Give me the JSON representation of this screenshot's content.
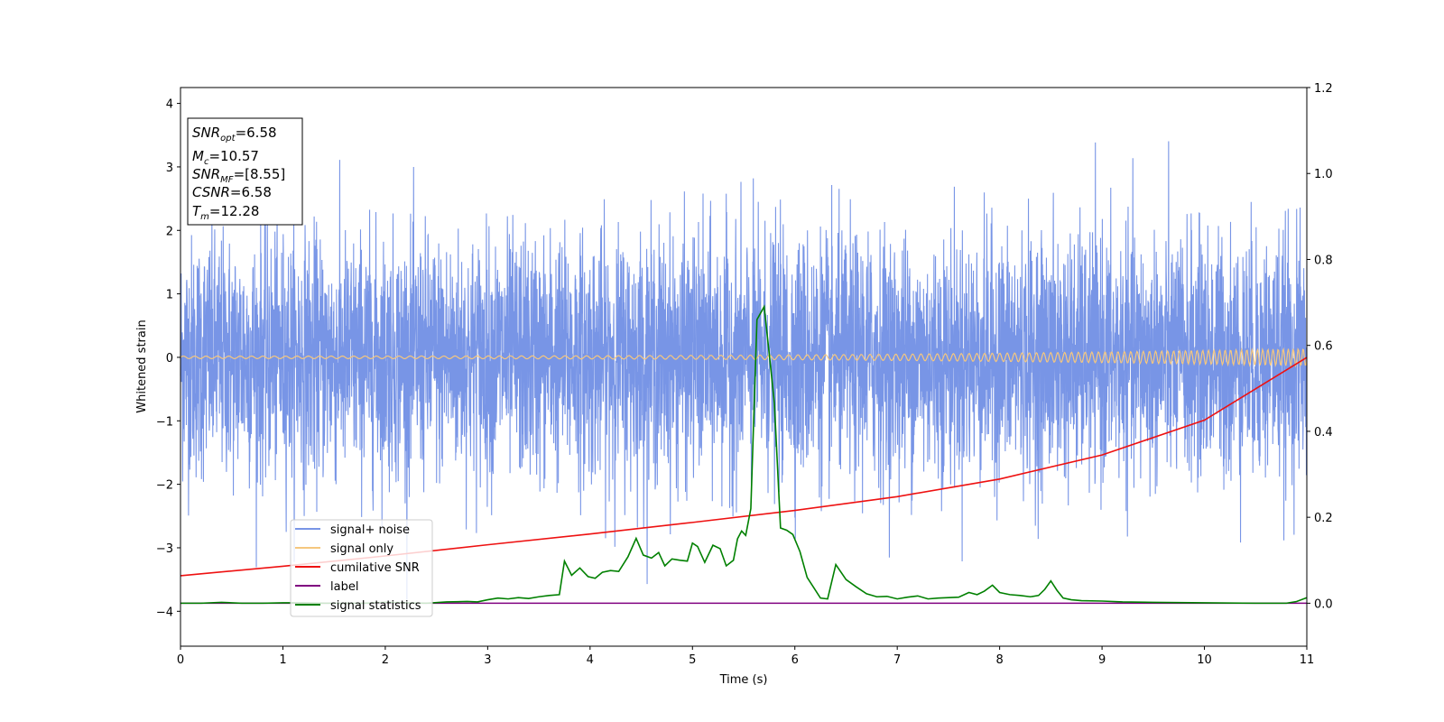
{
  "chart_data": {
    "type": "line",
    "xlabel": "Time (s)",
    "ylabel": "Whitened strain",
    "xlim": [
      0,
      11
    ],
    "ylim": [
      -4.55,
      4.25
    ],
    "y2lim": [
      -0.1,
      1.2
    ],
    "x_ticks": [
      "0",
      "1",
      "2",
      "3",
      "4",
      "5",
      "6",
      "7",
      "8",
      "9",
      "10",
      "11"
    ],
    "y_ticks": [
      "−4",
      "−3",
      "−2",
      "−1",
      "0",
      "1",
      "2",
      "3",
      "4"
    ],
    "y2_ticks": [
      "0.0",
      "0.2",
      "0.4",
      "0.6",
      "0.8",
      "1.0",
      "1.2"
    ],
    "grid": false,
    "legend_position": "lower-left",
    "info_box": {
      "line1": {
        "sym": "SNR",
        "sub": "opt",
        "value": "=6.58"
      },
      "line2": {
        "sym": "M",
        "sub": "c",
        "value": "=10.57"
      },
      "line3": {
        "sym": "SNR",
        "sub": "MF",
        "value": "=[8.55]"
      },
      "line4": {
        "sym": "CSNR",
        "sub": "",
        "value": "=6.58"
      },
      "line5": {
        "sym": "T",
        "sub": "m",
        "value": "=12.28"
      }
    },
    "series": [
      {
        "name": "signal+ noise",
        "color": "#7895e6",
        "axis": "left",
        "description_values": {
          "amplitude_envelope_min": -4.15,
          "amplitude_envelope_max": 3.88
        }
      },
      {
        "name": "signal only",
        "color": "#f5c77e",
        "axis": "left",
        "amplitude_start": 0.02,
        "amplitude_end": 0.14
      },
      {
        "name": "cumilative SNR",
        "color": "#ee1111",
        "axis": "right",
        "x": [
          0,
          1,
          2,
          3,
          4,
          5,
          6,
          7,
          8,
          9,
          10,
          11
        ],
        "y": [
          0.064,
          0.086,
          0.11,
          0.136,
          0.161,
          0.188,
          0.216,
          0.248,
          0.289,
          0.345,
          0.426,
          0.572
        ]
      },
      {
        "name": "label",
        "color": "#800080",
        "axis": "right",
        "x": [
          0,
          11
        ],
        "y": [
          0.0,
          0.0
        ]
      },
      {
        "name": "signal statistics",
        "color": "#008000",
        "axis": "right",
        "x": [
          0,
          0.2,
          0.4,
          0.6,
          0.8,
          1.0,
          1.2,
          1.4,
          1.6,
          1.8,
          2.0,
          2.2,
          2.4,
          2.6,
          2.8,
          2.9,
          3.0,
          3.1,
          3.2,
          3.3,
          3.4,
          3.5,
          3.6,
          3.7,
          3.75,
          3.82,
          3.9,
          3.98,
          4.05,
          4.12,
          4.2,
          4.28,
          4.37,
          4.45,
          4.52,
          4.6,
          4.67,
          4.73,
          4.8,
          4.88,
          4.95,
          5.0,
          5.05,
          5.12,
          5.2,
          5.27,
          5.33,
          5.4,
          5.44,
          5.48,
          5.52,
          5.57,
          5.63,
          5.7,
          5.75,
          5.8,
          5.86,
          5.92,
          5.98,
          6.05,
          6.12,
          6.18,
          6.25,
          6.32,
          6.4,
          6.5,
          6.6,
          6.7,
          6.8,
          6.9,
          7.0,
          7.1,
          7.2,
          7.3,
          7.4,
          7.5,
          7.6,
          7.7,
          7.78,
          7.85,
          7.93,
          8.0,
          8.1,
          8.2,
          8.3,
          8.38,
          8.44,
          8.5,
          8.56,
          8.62,
          8.7,
          8.8,
          9.0,
          9.2,
          9.5,
          10.0,
          10.5,
          10.8,
          10.9,
          11.0
        ],
        "y": [
          0.0,
          0.0,
          0.002,
          0.0,
          0.0,
          0.001,
          0.001,
          0.0,
          0.0,
          0.0,
          0.002,
          0.001,
          0.0,
          0.003,
          0.004,
          0.003,
          0.008,
          0.012,
          0.01,
          0.013,
          0.011,
          0.015,
          0.018,
          0.02,
          0.098,
          0.065,
          0.082,
          0.062,
          0.058,
          0.072,
          0.076,
          0.074,
          0.108,
          0.151,
          0.112,
          0.105,
          0.118,
          0.087,
          0.103,
          0.1,
          0.098,
          0.14,
          0.132,
          0.095,
          0.135,
          0.127,
          0.087,
          0.1,
          0.15,
          0.168,
          0.158,
          0.22,
          0.66,
          0.69,
          0.58,
          0.465,
          0.175,
          0.17,
          0.16,
          0.12,
          0.06,
          0.038,
          0.012,
          0.01,
          0.09,
          0.055,
          0.038,
          0.022,
          0.015,
          0.016,
          0.01,
          0.014,
          0.017,
          0.01,
          0.012,
          0.013,
          0.014,
          0.025,
          0.02,
          0.028,
          0.042,
          0.025,
          0.02,
          0.018,
          0.015,
          0.018,
          0.032,
          0.052,
          0.03,
          0.012,
          0.008,
          0.006,
          0.005,
          0.003,
          0.002,
          0.001,
          0.0,
          0.0,
          0.004,
          0.013
        ]
      }
    ]
  }
}
